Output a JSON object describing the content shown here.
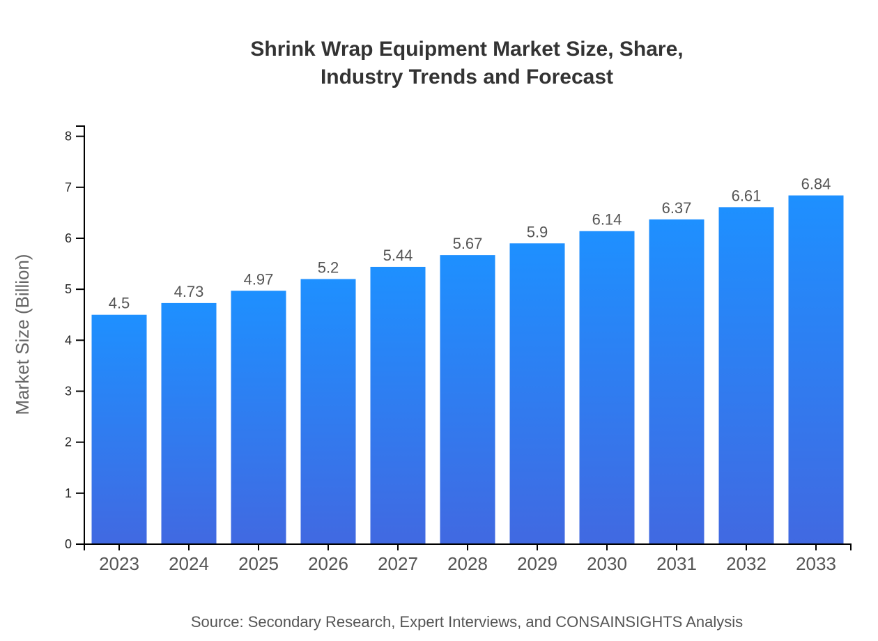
{
  "chart_data": {
    "type": "bar",
    "title_lines": [
      "Shrink Wrap Equipment Market Size, Share,",
      "Industry Trends and Forecast"
    ],
    "categories": [
      "2023",
      "2024",
      "2025",
      "2026",
      "2027",
      "2028",
      "2029",
      "2030",
      "2031",
      "2032",
      "2033"
    ],
    "values": [
      4.5,
      4.73,
      4.97,
      5.2,
      5.44,
      5.67,
      5.9,
      6.14,
      6.37,
      6.61,
      6.84
    ],
    "xlabel": "",
    "ylabel": "Market Size (Billion)",
    "ylim": [
      0,
      8.2
    ],
    "yticks": [
      0,
      1,
      2,
      3,
      4,
      5,
      6,
      7,
      8
    ],
    "grid": false,
    "data_labels": true,
    "colors": {
      "bar_top": "#1e90ff",
      "bar_bottom": "#4169e1"
    },
    "source": "Source: Secondary Research, Expert Interviews, and CONSAINSIGHTS Analysis"
  }
}
